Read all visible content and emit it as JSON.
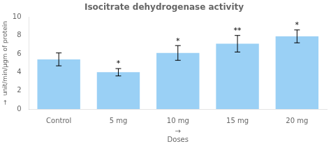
{
  "chart_data": {
    "type": "bar",
    "title": "Isocitrate dehydrogenase activity",
    "categories": [
      "Control",
      "5 mg",
      "10 mg",
      "15 mg",
      "20 mg"
    ],
    "values": [
      5.4,
      4.0,
      6.1,
      7.1,
      7.9
    ],
    "errors": [
      0.7,
      0.4,
      0.8,
      0.9,
      0.7
    ],
    "significance": [
      null,
      "*",
      "*",
      "**",
      "*"
    ],
    "ylabel": "→  unit/min/µgm of protein",
    "xlabel": "Doses",
    "annotations": [
      "→"
    ],
    "ylim": [
      0,
      10
    ],
    "yticks": [
      0,
      2,
      4,
      6,
      8,
      10
    ],
    "grid": false
  }
}
